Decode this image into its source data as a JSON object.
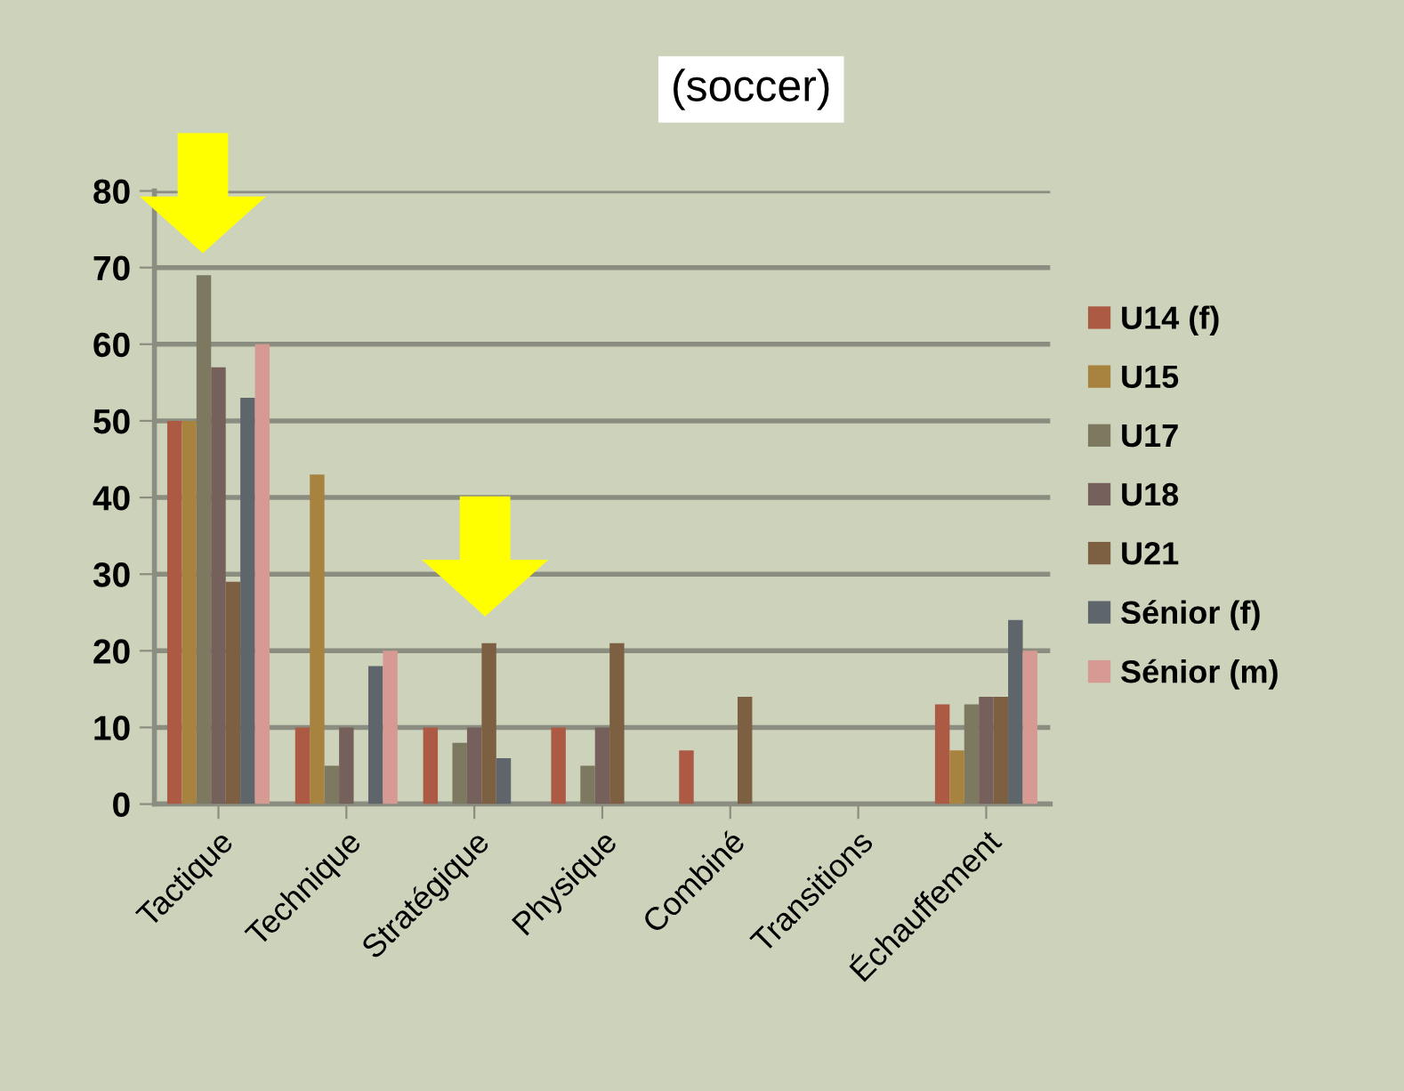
{
  "chart_data": {
    "type": "bar",
    "title": "(soccer)",
    "categories": [
      "Tactique",
      "Technique",
      "Stratégique",
      "Physique",
      "Combiné",
      "Transitions",
      "Échauffement"
    ],
    "series": [
      {
        "name": "U14 (f)",
        "color": "#ad5a45",
        "values": [
          50,
          10,
          10,
          10,
          7,
          0,
          13
        ]
      },
      {
        "name": "U15",
        "color": "#a8823f",
        "values": [
          50,
          43,
          0,
          0,
          0,
          0,
          7
        ]
      },
      {
        "name": "U17",
        "color": "#7d7960",
        "values": [
          69,
          5,
          8,
          5,
          0,
          0,
          13
        ]
      },
      {
        "name": "U18",
        "color": "#76605b",
        "values": [
          57,
          10,
          10,
          10,
          0,
          0,
          14
        ]
      },
      {
        "name": "U21",
        "color": "#7d6042",
        "values": [
          29,
          0,
          21,
          21,
          14,
          0,
          14
        ]
      },
      {
        "name": "Sénior (f)",
        "color": "#5e656b",
        "values": [
          53,
          18,
          6,
          0,
          0,
          0,
          24
        ]
      },
      {
        "name": "Sénior (m)",
        "color": "#d69a92",
        "values": [
          60,
          20,
          0,
          0,
          0,
          0,
          20
        ]
      }
    ],
    "ylim": [
      0,
      80
    ],
    "yticks": [
      0,
      10,
      20,
      30,
      40,
      50,
      60,
      70,
      80
    ],
    "grid": "y",
    "legend": "right"
  }
}
